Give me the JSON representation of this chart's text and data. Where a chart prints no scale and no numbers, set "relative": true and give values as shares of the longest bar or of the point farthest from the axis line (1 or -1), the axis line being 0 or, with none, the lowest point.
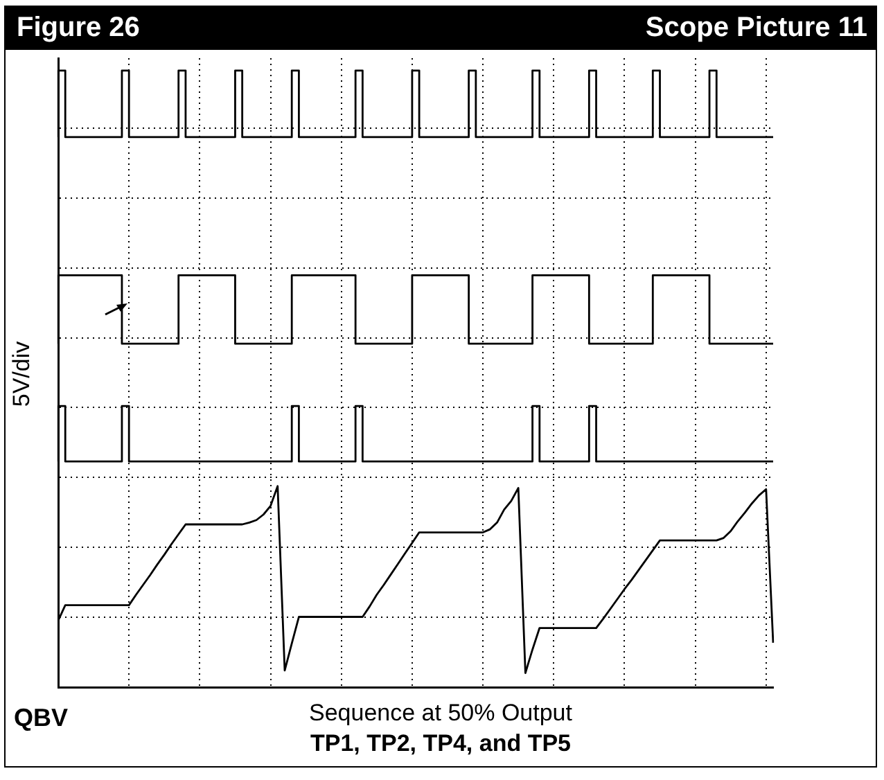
{
  "chart_data": {
    "type": "line",
    "title": "Figure 26",
    "subtitle": "Scope Picture 11",
    "ylabel": "5V/div",
    "annotations": [
      "QBV",
      "Sequence at 50% Output",
      "TP1, TP2, TP4, and TP5"
    ],
    "relative": true,
    "grid": true,
    "legend": false,
    "marker": "none",
    "categories": [
      null,
      null,
      null,
      null,
      null,
      null,
      null,
      null,
      null,
      null,
      null,
      null,
      null,
      null,
      null,
      null,
      null,
      null,
      null,
      null,
      null,
      null,
      null,
      null,
      null,
      null,
      null,
      null,
      null,
      null,
      null,
      null,
      null,
      null,
      null,
      null,
      null,
      null,
      null,
      null,
      null,
      null,
      null,
      null,
      null,
      null,
      null,
      null,
      null,
      null,
      null,
      null,
      null,
      null,
      null,
      null,
      null,
      null,
      null,
      null,
      null,
      null,
      null,
      null,
      null,
      null,
      null,
      null,
      null,
      null,
      null,
      null,
      null,
      null,
      null,
      null,
      null,
      null,
      null,
      null,
      null,
      null,
      null,
      null,
      null,
      null,
      null,
      null,
      null,
      null,
      null,
      null,
      null,
      null,
      null,
      null,
      null,
      null,
      null,
      null,
      null,
      null
    ],
    "series": [
      {
        "type": "step",
        "color": "#000000",
        "values": [
          0.892,
          1,
          0.892,
          0.892,
          0.892,
          0.892,
          0.892,
          0.892,
          0.892,
          0.892,
          1,
          0.892,
          0.892,
          0.892,
          0.892,
          0.892,
          0.892,
          0.892,
          1,
          0.892,
          0.892,
          0.892,
          0.892,
          0.892,
          0.892,
          0.892,
          1,
          0.892,
          0.892,
          0.892,
          0.892,
          0.892,
          0.892,
          0.892,
          1,
          0.892,
          0.892,
          0.892,
          0.892,
          0.892,
          0.892,
          0.892,
          0.892,
          1,
          0.892,
          0.892,
          0.892,
          0.892,
          0.892,
          0.892,
          0.892,
          1,
          0.892,
          0.892,
          0.892,
          0.892,
          0.892,
          0.892,
          0.892,
          1,
          0.892,
          0.892,
          0.892,
          0.892,
          0.892,
          0.892,
          0.892,
          0.892,
          1,
          0.892,
          0.892,
          0.892,
          0.892,
          0.892,
          0.892,
          0.892,
          1,
          0.892,
          0.892,
          0.892,
          0.892,
          0.892,
          0.892,
          0.892,
          0.892,
          1,
          0.892,
          0.892,
          0.892,
          0.892,
          0.892,
          0.892,
          0.892,
          1,
          0.892,
          0.892,
          0.892,
          0.892,
          0.892,
          0.892,
          0.892,
          0.892
        ]
      },
      {
        "type": "step",
        "color": "#000000",
        "values": [
          0.557,
          0.668,
          0.668,
          0.668,
          0.668,
          0.668,
          0.668,
          0.668,
          0.668,
          0.668,
          0.557,
          0.557,
          0.557,
          0.557,
          0.557,
          0.557,
          0.557,
          0.557,
          0.668,
          0.668,
          0.668,
          0.668,
          0.668,
          0.668,
          0.668,
          0.668,
          0.557,
          0.557,
          0.557,
          0.557,
          0.557,
          0.557,
          0.557,
          0.557,
          0.668,
          0.668,
          0.668,
          0.668,
          0.668,
          0.668,
          0.668,
          0.668,
          0.668,
          0.557,
          0.557,
          0.557,
          0.557,
          0.557,
          0.557,
          0.557,
          0.557,
          0.668,
          0.668,
          0.668,
          0.668,
          0.668,
          0.668,
          0.668,
          0.668,
          0.557,
          0.557,
          0.557,
          0.557,
          0.557,
          0.557,
          0.557,
          0.557,
          0.557,
          0.668,
          0.668,
          0.668,
          0.668,
          0.668,
          0.668,
          0.668,
          0.668,
          0.557,
          0.557,
          0.557,
          0.557,
          0.557,
          0.557,
          0.557,
          0.557,
          0.557,
          0.668,
          0.668,
          0.668,
          0.668,
          0.668,
          0.668,
          0.668,
          0.668,
          0.557,
          0.557,
          0.557,
          0.557,
          0.557,
          0.557,
          0.557,
          0.557,
          0.557
        ]
      },
      {
        "type": "step",
        "color": "#000000",
        "values": [
          0.366,
          0.456,
          0.366,
          0.366,
          0.366,
          0.366,
          0.366,
          0.366,
          0.366,
          0.366,
          0.456,
          0.366,
          0.366,
          0.366,
          0.366,
          0.366,
          0.366,
          0.366,
          0.366,
          0.366,
          0.366,
          0.366,
          0.366,
          0.366,
          0.366,
          0.366,
          0.366,
          0.366,
          0.366,
          0.366,
          0.366,
          0.366,
          0.366,
          0.366,
          0.456,
          0.366,
          0.366,
          0.366,
          0.366,
          0.366,
          0.366,
          0.366,
          0.366,
          0.456,
          0.366,
          0.366,
          0.366,
          0.366,
          0.366,
          0.366,
          0.366,
          0.366,
          0.366,
          0.366,
          0.366,
          0.366,
          0.366,
          0.366,
          0.366,
          0.366,
          0.366,
          0.366,
          0.366,
          0.366,
          0.366,
          0.366,
          0.366,
          0.366,
          0.456,
          0.366,
          0.366,
          0.366,
          0.366,
          0.366,
          0.366,
          0.366,
          0.456,
          0.366,
          0.366,
          0.366,
          0.366,
          0.366,
          0.366,
          0.366,
          0.366,
          0.366,
          0.366,
          0.366,
          0.366,
          0.366,
          0.366,
          0.366,
          0.366,
          0.366,
          0.366,
          0.366,
          0.366,
          0.366,
          0.366,
          0.366,
          0.366,
          0.366
        ]
      },
      {
        "type": "line",
        "color": "#000000",
        "values": [
          0.108,
          0.133,
          0.133,
          0.133,
          0.133,
          0.133,
          0.133,
          0.133,
          0.133,
          0.133,
          0.133,
          0.15,
          0.166,
          0.182,
          0.199,
          0.215,
          0.232,
          0.248,
          0.264,
          0.264,
          0.264,
          0.264,
          0.264,
          0.264,
          0.264,
          0.264,
          0.264,
          0.267,
          0.271,
          0.28,
          0.294,
          0.326,
          0.027,
          0.071,
          0.114,
          0.114,
          0.114,
          0.114,
          0.114,
          0.114,
          0.114,
          0.114,
          0.114,
          0.114,
          0.131,
          0.15,
          0.166,
          0.183,
          0.2,
          0.217,
          0.234,
          0.251,
          0.251,
          0.251,
          0.251,
          0.251,
          0.251,
          0.251,
          0.251,
          0.251,
          0.251,
          0.256,
          0.267,
          0.288,
          0.302,
          0.323,
          0.023,
          0.061,
          0.096,
          0.096,
          0.096,
          0.096,
          0.096,
          0.096,
          0.096,
          0.096,
          0.096,
          0.111,
          0.127,
          0.143,
          0.159,
          0.174,
          0.19,
          0.206,
          0.222,
          0.238,
          0.238,
          0.238,
          0.238,
          0.238,
          0.238,
          0.238,
          0.238,
          0.238,
          0.242,
          0.253,
          0.269,
          0.283,
          0.298,
          0.311,
          0.321,
          0.072
        ]
      }
    ]
  }
}
